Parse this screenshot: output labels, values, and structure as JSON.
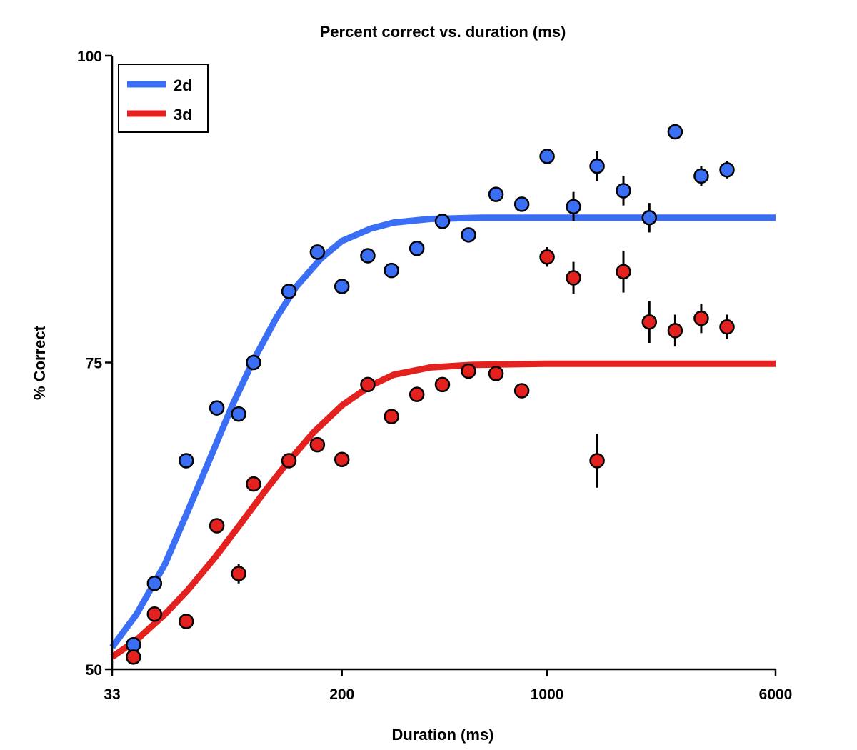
{
  "chart_data": {
    "type": "scatter",
    "title": "Percent correct vs. duration (ms)",
    "xlabel": "Duration (ms)",
    "ylabel": "% Correct",
    "xscale": "log",
    "xlim": [
      33,
      6000
    ],
    "ylim": [
      50,
      100
    ],
    "xticks": [
      33,
      200,
      1000,
      6000
    ],
    "yticks": [
      50,
      75,
      100
    ],
    "xtick_labels": [
      "33",
      "200",
      "1000",
      "6000"
    ],
    "ytick_labels": [
      "50",
      "75",
      "100"
    ],
    "legend_position": "top-left",
    "grid": false,
    "series": [
      {
        "name": "2d",
        "color": "#3a6ef5",
        "points": [
          {
            "x": 39,
            "y": 52,
            "err": 0.4
          },
          {
            "x": 46,
            "y": 57,
            "err": 0.4
          },
          {
            "x": 59,
            "y": 67,
            "err": 0.4
          },
          {
            "x": 75,
            "y": 71.3,
            "err": 0.4
          },
          {
            "x": 89,
            "y": 70.8,
            "err": 0.6
          },
          {
            "x": 100,
            "y": 75,
            "err": 0.4
          },
          {
            "x": 132,
            "y": 80.8,
            "err": 0.4
          },
          {
            "x": 165,
            "y": 84,
            "err": 0.4
          },
          {
            "x": 200,
            "y": 81.2,
            "err": 0.4
          },
          {
            "x": 245,
            "y": 83.7,
            "err": 0.4
          },
          {
            "x": 295,
            "y": 82.5,
            "err": 0.4
          },
          {
            "x": 360,
            "y": 84.3,
            "err": 0.4
          },
          {
            "x": 440,
            "y": 86.5,
            "err": 0.4
          },
          {
            "x": 540,
            "y": 85.4,
            "err": 0.4
          },
          {
            "x": 670,
            "y": 88.7,
            "err": 0.4
          },
          {
            "x": 820,
            "y": 87.9,
            "err": 0.4
          },
          {
            "x": 1000,
            "y": 91.8,
            "err": 0.6
          },
          {
            "x": 1230,
            "y": 87.7,
            "err": 1.2
          },
          {
            "x": 1480,
            "y": 91,
            "err": 1.2
          },
          {
            "x": 1820,
            "y": 89,
            "err": 1.2
          },
          {
            "x": 2230,
            "y": 86.8,
            "err": 1.2
          },
          {
            "x": 2730,
            "y": 93.8,
            "err": 0.5
          },
          {
            "x": 3350,
            "y": 90.2,
            "err": 0.8
          },
          {
            "x": 4100,
            "y": 90.7,
            "err": 0.7
          }
        ],
        "fit": [
          {
            "x": 33,
            "y": 51.8
          },
          {
            "x": 40,
            "y": 54.5
          },
          {
            "x": 50,
            "y": 58.6
          },
          {
            "x": 60,
            "y": 63
          },
          {
            "x": 70,
            "y": 66.8
          },
          {
            "x": 85,
            "y": 71.6
          },
          {
            "x": 100,
            "y": 75.2
          },
          {
            "x": 120,
            "y": 78.7
          },
          {
            "x": 140,
            "y": 81.2
          },
          {
            "x": 170,
            "y": 83.5
          },
          {
            "x": 200,
            "y": 84.9
          },
          {
            "x": 250,
            "y": 85.9
          },
          {
            "x": 300,
            "y": 86.4
          },
          {
            "x": 400,
            "y": 86.7
          },
          {
            "x": 600,
            "y": 86.8
          },
          {
            "x": 1000,
            "y": 86.8
          },
          {
            "x": 6000,
            "y": 86.8
          }
        ]
      },
      {
        "name": "3d",
        "color": "#e3211e",
        "points": [
          {
            "x": 39,
            "y": 51,
            "err": 0.4
          },
          {
            "x": 46,
            "y": 54.5,
            "err": 0.4
          },
          {
            "x": 59,
            "y": 53.9,
            "err": 0.6
          },
          {
            "x": 75,
            "y": 61.7,
            "err": 0.6
          },
          {
            "x": 89,
            "y": 57.8,
            "err": 0.8
          },
          {
            "x": 100,
            "y": 65.1,
            "err": 0.4
          },
          {
            "x": 132,
            "y": 67,
            "err": 0.4
          },
          {
            "x": 165,
            "y": 68.3,
            "err": 0.6
          },
          {
            "x": 200,
            "y": 67.1,
            "err": 0.4
          },
          {
            "x": 245,
            "y": 73.2,
            "err": 0.4
          },
          {
            "x": 295,
            "y": 70.6,
            "err": 0.4
          },
          {
            "x": 360,
            "y": 72.4,
            "err": 0.4
          },
          {
            "x": 440,
            "y": 73.2,
            "err": 0.4
          },
          {
            "x": 540,
            "y": 74.3,
            "err": 0.4
          },
          {
            "x": 670,
            "y": 74.1,
            "err": 0.4
          },
          {
            "x": 820,
            "y": 72.7,
            "err": 0.4
          },
          {
            "x": 1000,
            "y": 83.6,
            "err": 0.8
          },
          {
            "x": 1230,
            "y": 81.9,
            "err": 1.3
          },
          {
            "x": 1480,
            "y": 67,
            "err": 2.2
          },
          {
            "x": 1820,
            "y": 82.4,
            "err": 1.7
          },
          {
            "x": 2230,
            "y": 78.3,
            "err": 1.7
          },
          {
            "x": 2730,
            "y": 77.6,
            "err": 1.3
          },
          {
            "x": 3350,
            "y": 78.6,
            "err": 1.2
          },
          {
            "x": 4100,
            "y": 77.9,
            "err": 1.0
          }
        ],
        "fit": [
          {
            "x": 33,
            "y": 51
          },
          {
            "x": 40,
            "y": 52.4
          },
          {
            "x": 50,
            "y": 54.5
          },
          {
            "x": 60,
            "y": 56.5
          },
          {
            "x": 75,
            "y": 59.3
          },
          {
            "x": 90,
            "y": 61.8
          },
          {
            "x": 110,
            "y": 64.6
          },
          {
            "x": 130,
            "y": 66.8
          },
          {
            "x": 160,
            "y": 69.3
          },
          {
            "x": 200,
            "y": 71.5
          },
          {
            "x": 250,
            "y": 73.1
          },
          {
            "x": 300,
            "y": 74
          },
          {
            "x": 400,
            "y": 74.6
          },
          {
            "x": 550,
            "y": 74.8
          },
          {
            "x": 1000,
            "y": 74.9
          },
          {
            "x": 6000,
            "y": 74.9
          }
        ]
      }
    ]
  }
}
